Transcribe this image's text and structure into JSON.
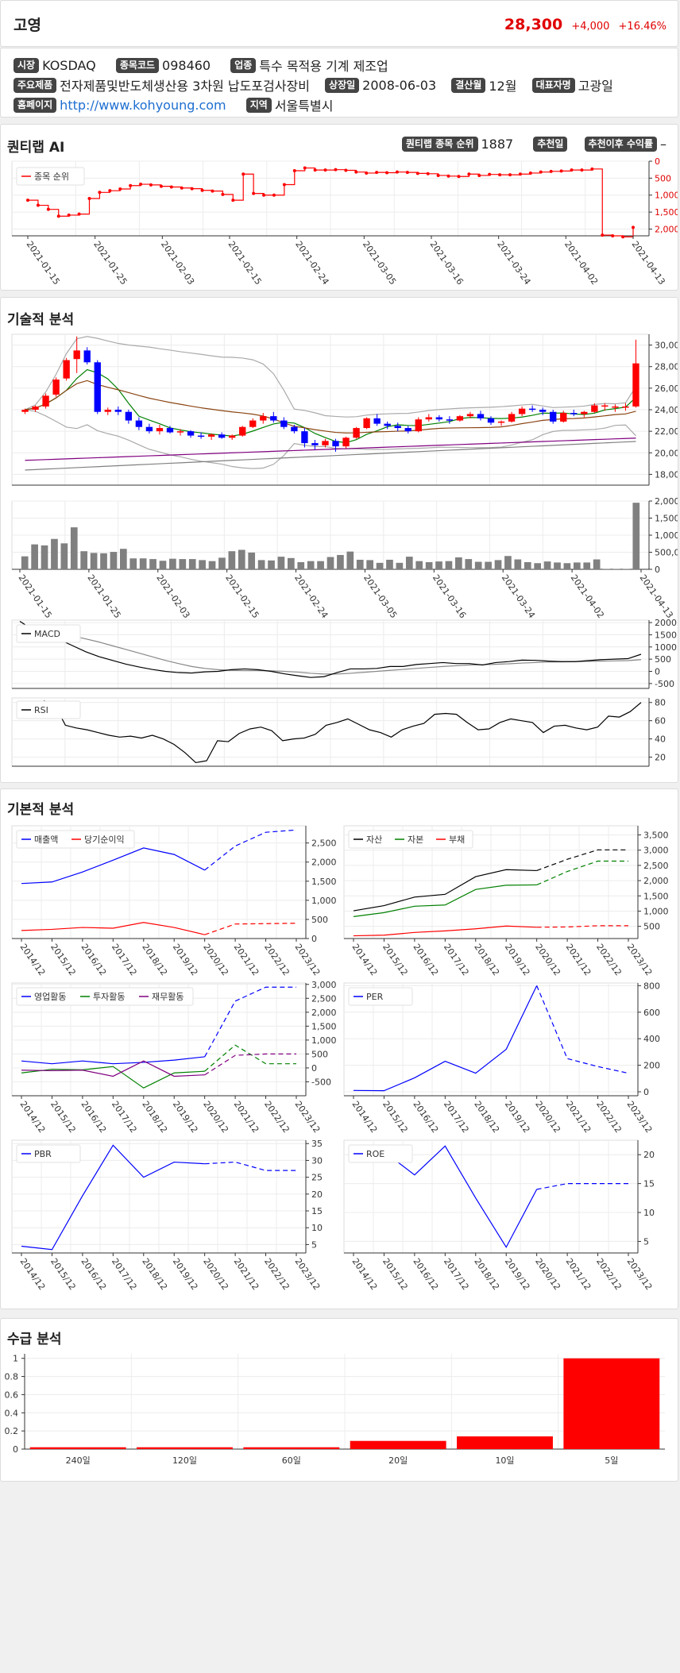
{
  "header": {
    "name": "고영",
    "price": "28,300",
    "change": "+4,000",
    "change_pct": "+16.46%",
    "price_color": "#e00000"
  },
  "info": {
    "market_label": "시장",
    "market": "KOSDAQ",
    "code_label": "종목코드",
    "code": "098460",
    "industry_label": "업종",
    "industry": "특수 목적용 기계 제조업",
    "products_label": "주요제품",
    "products": "전자제품및반도체생산용 3차원 납도포검사장비",
    "listing_label": "상장일",
    "listing": "2008-06-03",
    "fiscal_label": "결산월",
    "fiscal": "12월",
    "ceo_label": "대표자명",
    "ceo": "고광일",
    "homepage_label": "홈페이지",
    "homepage": "http://www.kohyoung.com",
    "region_label": "지역",
    "region": "서울특별시"
  },
  "quantilab": {
    "title": "퀀티랩 AI",
    "rank_label": "퀀티랩 종목 순위",
    "rank": "1887",
    "rec_date_label": "추천일",
    "rec_return_label": "추천이후 수익률",
    "rec_return": "–"
  },
  "sections": {
    "technical": "기술적 분석",
    "fundamental": "기본적 분석",
    "supply": "수급 분석"
  },
  "chart_data": [
    {
      "id": "rank",
      "type": "line",
      "legend": [
        "종목 순위"
      ],
      "x_ticks": [
        "2021-01-15",
        "2021-01-25",
        "2021-02-03",
        "2021-02-15",
        "2021-02-24",
        "2021-03-05",
        "2021-03-16",
        "2021-03-24",
        "2021-04-02",
        "2021-04-13"
      ],
      "y_ticks": [
        "0",
        "500",
        "1,000",
        "1,500",
        "2,000"
      ],
      "ylim": [
        0,
        2200
      ],
      "y_inverted": true,
      "color": "#ff0000",
      "values": [
        1150,
        1300,
        1420,
        1620,
        1590,
        1560,
        1100,
        920,
        870,
        820,
        720,
        680,
        700,
        740,
        760,
        790,
        810,
        860,
        880,
        980,
        1150,
        380,
        950,
        1000,
        1000,
        690,
        280,
        200,
        260,
        260,
        250,
        270,
        320,
        350,
        330,
        340,
        320,
        330,
        360,
        370,
        420,
        440,
        450,
        380,
        420,
        390,
        400,
        400,
        380,
        350,
        320,
        300,
        290,
        260,
        260,
        230,
        2180,
        2200,
        2230,
        1950
      ]
    },
    {
      "id": "price",
      "type": "candlestick",
      "y_ticks": [
        "18,000",
        "20,000",
        "22,000",
        "24,000",
        "26,000",
        "28,000",
        "30,000"
      ],
      "ylim": [
        17000,
        31000
      ],
      "up_color": "#ff0000",
      "down_color": "#0000ff",
      "candles": [
        [
          23800,
          24100,
          23600,
          24000
        ],
        [
          24000,
          24400,
          23800,
          24300
        ],
        [
          24300,
          25500,
          24100,
          25300
        ],
        [
          25400,
          27000,
          25200,
          26800
        ],
        [
          26900,
          28800,
          26700,
          28600
        ],
        [
          28700,
          30800,
          27400,
          29500
        ],
        [
          29500,
          29800,
          28200,
          28400
        ],
        [
          28400,
          28600,
          23600,
          23800
        ],
        [
          23800,
          24200,
          23500,
          24000
        ],
        [
          24000,
          24300,
          23500,
          23800
        ],
        [
          23800,
          24000,
          22700,
          23000
        ],
        [
          23000,
          23300,
          22100,
          22400
        ],
        [
          22400,
          22700,
          21800,
          22000
        ],
        [
          22000,
          22600,
          21700,
          22300
        ],
        [
          22300,
          22500,
          21800,
          21900
        ],
        [
          21900,
          22200,
          21600,
          22000
        ],
        [
          22000,
          22100,
          21400,
          21600
        ],
        [
          21600,
          21900,
          21300,
          21500
        ],
        [
          21500,
          21800,
          21200,
          21700
        ],
        [
          21700,
          21900,
          21300,
          21400
        ],
        [
          21400,
          21700,
          21200,
          21600
        ],
        [
          21600,
          22500,
          21500,
          22400
        ],
        [
          22400,
          23200,
          22300,
          23000
        ],
        [
          23000,
          23700,
          22700,
          23400
        ],
        [
          23400,
          23800,
          22800,
          23000
        ],
        [
          23000,
          23300,
          22200,
          22400
        ],
        [
          22400,
          22600,
          21800,
          22000
        ],
        [
          22000,
          22300,
          20500,
          20900
        ],
        [
          20900,
          21200,
          20300,
          20700
        ],
        [
          20700,
          21300,
          20500,
          21100
        ],
        [
          21100,
          21300,
          20100,
          20600
        ],
        [
          20600,
          21500,
          20400,
          21400
        ],
        [
          21400,
          22400,
          21300,
          22300
        ],
        [
          22300,
          23300,
          22200,
          23200
        ],
        [
          23200,
          23600,
          22500,
          22700
        ],
        [
          22700,
          22900,
          22200,
          22500
        ],
        [
          22500,
          22800,
          22000,
          22300
        ],
        [
          22300,
          22500,
          21800,
          22000
        ],
        [
          22000,
          23300,
          21900,
          23100
        ],
        [
          23100,
          23600,
          22900,
          23300
        ],
        [
          23300,
          23500,
          22900,
          23100
        ],
        [
          23100,
          23400,
          22700,
          23000
        ],
        [
          23000,
          23500,
          22900,
          23400
        ],
        [
          23400,
          23800,
          23200,
          23600
        ],
        [
          23600,
          23900,
          23000,
          23200
        ],
        [
          23200,
          23400,
          22600,
          22800
        ],
        [
          22800,
          23000,
          22500,
          22900
        ],
        [
          22900,
          23800,
          22800,
          23600
        ],
        [
          23600,
          24300,
          23400,
          24100
        ],
        [
          24100,
          24400,
          23800,
          24000
        ],
        [
          24000,
          24200,
          23500,
          23800
        ],
        [
          23800,
          24000,
          22700,
          22900
        ],
        [
          22900,
          23900,
          22800,
          23700
        ],
        [
          23700,
          24000,
          23400,
          23600
        ],
        [
          23600,
          23900,
          23300,
          23800
        ],
        [
          23800,
          24600,
          23700,
          24400
        ],
        [
          24400,
          24600,
          23900,
          24400
        ],
        [
          24300,
          24500,
          23800,
          24300
        ],
        [
          24300,
          24600,
          23900,
          24300
        ],
        [
          24300,
          30500,
          24200,
          28300
        ]
      ],
      "overlays": {
        "upper_band_color": "#aaaaaa",
        "ma_short_color": "#008000",
        "ma_mid_color": "#8b4513",
        "ma_long_color": "#800080",
        "ma_xlong_color": "#808080"
      }
    },
    {
      "id": "volume",
      "type": "bar",
      "y_ticks": [
        "0",
        "500,000",
        "1,000,000",
        "1,500,000",
        "2,000,000"
      ],
      "ylim": [
        0,
        2000000
      ],
      "color": "#808080",
      "values": [
        380000,
        730000,
        700000,
        890000,
        760000,
        1230000,
        530000,
        480000,
        470000,
        510000,
        600000,
        320000,
        320000,
        300000,
        250000,
        310000,
        300000,
        300000,
        270000,
        240000,
        340000,
        530000,
        570000,
        490000,
        270000,
        260000,
        370000,
        330000,
        210000,
        240000,
        240000,
        360000,
        420000,
        520000,
        280000,
        270000,
        190000,
        280000,
        190000,
        370000,
        240000,
        210000,
        230000,
        240000,
        350000,
        300000,
        220000,
        220000,
        270000,
        390000,
        290000,
        210000,
        180000,
        230000,
        200000,
        180000,
        200000,
        200000,
        290000,
        10000,
        10000,
        10000,
        1950000
      ],
      "x_ticks": [
        "2021-01-15",
        "2021-01-25",
        "2021-02-03",
        "2021-02-15",
        "2021-02-24",
        "2021-03-05",
        "2021-03-16",
        "2021-03-24",
        "2021-04-02",
        "2021-04-13"
      ]
    },
    {
      "id": "macd",
      "type": "line",
      "legend": [
        "MACD"
      ],
      "y_ticks": [
        "-500",
        "0",
        "500",
        "1000",
        "1500",
        "2000"
      ],
      "ylim": [
        -700,
        2100
      ],
      "macd": [
        2050,
        1700,
        1500,
        1300,
        1050,
        800,
        600,
        450,
        300,
        180,
        80,
        0,
        -50,
        -70,
        -20,
        0,
        70,
        100,
        70,
        0,
        -100,
        -180,
        -250,
        -220,
        -50,
        100,
        100,
        120,
        200,
        200,
        280,
        320,
        360,
        320,
        320,
        260,
        360,
        400,
        460,
        450,
        420,
        400,
        400,
        440,
        480,
        500,
        520,
        700
      ],
      "signal": [
        1650,
        1690,
        1630,
        1550,
        1450,
        1330,
        1200,
        1050,
        900,
        750,
        600,
        450,
        320,
        200,
        120,
        70,
        40,
        30,
        30,
        20,
        0,
        -30,
        -80,
        -110,
        -110,
        -80,
        -40,
        0,
        40,
        80,
        120,
        160,
        200,
        230,
        260,
        270,
        290,
        310,
        340,
        360,
        380,
        390,
        400,
        410,
        420,
        430,
        440,
        480
      ],
      "colors": [
        "#000000",
        "#888888"
      ]
    },
    {
      "id": "rsi",
      "type": "line",
      "legend": [
        "RSI"
      ],
      "y_ticks": [
        "20",
        "40",
        "60",
        "80"
      ],
      "ylim": [
        10,
        85
      ],
      "color": "#000000",
      "values": [
        82,
        78,
        55,
        52,
        50,
        47,
        44,
        42,
        43,
        41,
        44,
        40,
        34,
        25,
        14,
        16,
        38,
        37,
        46,
        51,
        53,
        49,
        38,
        40,
        41,
        45,
        55,
        58,
        62,
        56,
        50,
        47,
        42,
        50,
        54,
        57,
        67,
        68,
        67,
        58,
        50,
        51,
        58,
        62,
        60,
        58,
        47,
        54,
        55,
        52,
        50,
        53,
        65,
        64,
        70,
        80
      ]
    },
    {
      "id": "fund_sales",
      "type": "line",
      "legend": [
        "매출액",
        "당기순이익"
      ],
      "categories": [
        "2014/12",
        "2015/12",
        "2016/12",
        "2017/12",
        "2018/12",
        "2019/12",
        "2020/12",
        "2021/12",
        "2022/12",
        "2023/12"
      ],
      "y_ticks": [
        "0",
        "500",
        "1,000",
        "1,500",
        "2,000",
        "2,500"
      ],
      "ylim": [
        0,
        2950
      ],
      "series": [
        {
          "name": "매출액",
          "values": [
            1440,
            1480,
            1740,
            2050,
            2370,
            2200,
            1790,
            2420,
            2780,
            2840
          ],
          "color": "#0000ff"
        },
        {
          "name": "당기순이익",
          "values": [
            210,
            240,
            290,
            270,
            420,
            290,
            100,
            380,
            390,
            400
          ],
          "color": "#ff0000"
        }
      ],
      "forecast_from": 6
    },
    {
      "id": "fund_assets",
      "type": "line",
      "legend": [
        "자산",
        "자본",
        "부채"
      ],
      "categories": [
        "2014/12",
        "2015/12",
        "2016/12",
        "2017/12",
        "2018/12",
        "2019/12",
        "2020/12",
        "2021/12",
        "2022/12",
        "2023/12"
      ],
      "y_ticks": [
        "500",
        "1,000",
        "1,500",
        "2,000",
        "2,500",
        "3,000",
        "3,500"
      ],
      "ylim": [
        100,
        3800
      ],
      "series": [
        {
          "name": "자산",
          "values": [
            1010,
            1180,
            1460,
            1550,
            2130,
            2360,
            2330,
            2700,
            3010,
            3010
          ],
          "color": "#000000"
        },
        {
          "name": "자본",
          "values": [
            820,
            950,
            1160,
            1200,
            1710,
            1850,
            1860,
            2300,
            2640,
            2640
          ],
          "color": "#008000"
        },
        {
          "name": "부채",
          "values": [
            190,
            210,
            300,
            350,
            420,
            510,
            470,
            480,
            520,
            520
          ],
          "color": "#ff0000"
        }
      ],
      "forecast_from": 6
    },
    {
      "id": "fund_cashflow",
      "type": "line",
      "legend": [
        "영업활동",
        "투자활동",
        "재무활동"
      ],
      "categories": [
        "2014/12",
        "2015/12",
        "2016/12",
        "2017/12",
        "2018/12",
        "2019/12",
        "2020/12",
        "2021/12",
        "2022/12",
        "2023/12"
      ],
      "y_ticks": [
        "-500",
        "0",
        "500",
        "1,000",
        "1,500",
        "2,000",
        "2,500",
        "3,000"
      ],
      "ylim": [
        -1000,
        3050
      ],
      "series": [
        {
          "name": "영업활동",
          "values": [
            250,
            150,
            250,
            150,
            200,
            280,
            400,
            2400,
            2900,
            2900
          ],
          "color": "#0000ff"
        },
        {
          "name": "투자활동",
          "values": [
            -180,
            -50,
            -70,
            50,
            -720,
            -180,
            -120,
            820,
            150,
            150
          ],
          "color": "#008000"
        },
        {
          "name": "재무활동",
          "values": [
            -80,
            -100,
            -80,
            -300,
            250,
            -300,
            -250,
            450,
            500,
            500
          ],
          "color": "#800080"
        }
      ],
      "forecast_from": 6
    },
    {
      "id": "fund_per",
      "type": "line",
      "legend": [
        "PER"
      ],
      "categories": [
        "2014/12",
        "2015/12",
        "2016/12",
        "2017/12",
        "2018/12",
        "2019/12",
        "2020/12",
        "2021/12",
        "2022/12",
        "2023/12"
      ],
      "y_ticks": [
        "0",
        "200",
        "400",
        "600",
        "800"
      ],
      "ylim": [
        -30,
        820
      ],
      "series": [
        {
          "name": "PER",
          "values": [
            10,
            8,
            105,
            230,
            140,
            320,
            800,
            250,
            190,
            140
          ],
          "color": "#0000ff"
        }
      ],
      "forecast_from": 6
    },
    {
      "id": "fund_pbr",
      "type": "line",
      "legend": [
        "PBR"
      ],
      "categories": [
        "2014/12",
        "2015/12",
        "2016/12",
        "2017/12",
        "2018/12",
        "2019/12",
        "2020/12",
        "2021/12",
        "2022/12",
        "2023/12"
      ],
      "y_ticks": [
        "5",
        "10",
        "15",
        "20",
        "25",
        "30",
        "35"
      ],
      "ylim": [
        2.5,
        36
      ],
      "series": [
        {
          "name": "PBR",
          "values": [
            4.5,
            3.5,
            19.5,
            34.5,
            25,
            29.5,
            29,
            29.5,
            27,
            27
          ],
          "color": "#0000ff"
        }
      ],
      "forecast_from": 6
    },
    {
      "id": "fund_roe",
      "type": "line",
      "legend": [
        "ROE"
      ],
      "categories": [
        "2014/12",
        "2015/12",
        "2016/12",
        "2017/12",
        "2018/12",
        "2019/12",
        "2020/12",
        "2021/12",
        "2022/12",
        "2023/12"
      ],
      "y_ticks": [
        "5",
        "10",
        "15",
        "20"
      ],
      "ylim": [
        3,
        22.5
      ],
      "series": [
        {
          "name": "ROE",
          "values": [
            19,
            20.5,
            16.5,
            21.5,
            12.5,
            4,
            14,
            15,
            15,
            15
          ],
          "color": "#0000ff"
        }
      ],
      "forecast_from": 6
    },
    {
      "id": "supply",
      "type": "bar",
      "categories": [
        "240일",
        "120일",
        "60일",
        "20일",
        "10일",
        "5일"
      ],
      "values": [
        0.02,
        0.02,
        0.02,
        0.09,
        0.14,
        1.0
      ],
      "y_ticks": [
        "0",
        "0.2",
        "0.4",
        "0.6",
        "0.8",
        "1"
      ],
      "ylim": [
        0,
        1.05
      ],
      "color": "#ff0000"
    }
  ]
}
